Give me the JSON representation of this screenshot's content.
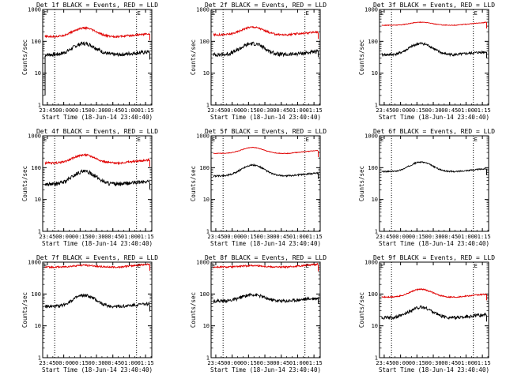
{
  "colors": {
    "events": "#000000",
    "lld": "#e00000",
    "axis": "#000000",
    "background": "#ffffff"
  },
  "shared": {
    "ylabel": "Counts/sec",
    "xlabel": "Start Time (18-Jun-14 23:40:40)",
    "x_ticks": [
      "23:45",
      "00:00",
      "00:15",
      "00:30",
      "00:45",
      "01:00",
      "01:15"
    ],
    "y_ticks": [
      "1",
      "10",
      "100",
      "1000"
    ],
    "marker_start": "E",
    "marker_end": "E"
  },
  "chart_data": [
    {
      "type": "line",
      "title": "Det 1f BLACK = Events, RED = LLD",
      "yscale": "log",
      "ylim": [
        1,
        1000
      ],
      "xlim_minutes": [
        0,
        100
      ],
      "series": [
        {
          "name": "Events",
          "color": "#000000",
          "base": 38,
          "peak": 85,
          "noise": 0.12,
          "has_start_spike": true
        },
        {
          "name": "LLD",
          "color": "#e00000",
          "base": 140,
          "peak": 260,
          "noise": 0.06
        }
      ]
    },
    {
      "type": "line",
      "title": "Det 2f BLACK = Events, RED = LLD",
      "yscale": "log",
      "ylim": [
        1,
        1000
      ],
      "xlim_minutes": [
        0,
        100
      ],
      "series": [
        {
          "name": "Events",
          "color": "#000000",
          "base": 38,
          "peak": 85,
          "noise": 0.12
        },
        {
          "name": "LLD",
          "color": "#e00000",
          "base": 160,
          "peak": 280,
          "noise": 0.06
        }
      ]
    },
    {
      "type": "line",
      "title": "Det 3f BLACK = Events, RED = LLD",
      "yscale": "log",
      "ylim": [
        1,
        1000
      ],
      "xlim_minutes": [
        0,
        100
      ],
      "series": [
        {
          "name": "Events",
          "color": "#000000",
          "base": 38,
          "peak": 85,
          "noise": 0.08
        },
        {
          "name": "LLD",
          "color": "#e00000",
          "base": 320,
          "peak": 400,
          "noise": 0.02
        }
      ]
    },
    {
      "type": "line",
      "title": "Det 4f BLACK = Events, RED = LLD",
      "yscale": "log",
      "ylim": [
        1,
        1000
      ],
      "xlim_minutes": [
        0,
        100
      ],
      "series": [
        {
          "name": "Events",
          "color": "#000000",
          "base": 30,
          "peak": 75,
          "noise": 0.12
        },
        {
          "name": "LLD",
          "color": "#e00000",
          "base": 140,
          "peak": 250,
          "noise": 0.06
        }
      ]
    },
    {
      "type": "line",
      "title": "Det 5f BLACK = Events, RED = LLD",
      "yscale": "log",
      "ylim": [
        1,
        1000
      ],
      "xlim_minutes": [
        0,
        100
      ],
      "series": [
        {
          "name": "Events",
          "color": "#000000",
          "base": 55,
          "peak": 120,
          "noise": 0.05
        },
        {
          "name": "LLD",
          "color": "#e00000",
          "base": 280,
          "peak": 430,
          "noise": 0.02
        }
      ]
    },
    {
      "type": "line",
      "title": "Det 6f BLACK = Events, RED = LLD",
      "yscale": "log",
      "ylim": [
        1,
        1000
      ],
      "xlim_minutes": [
        0,
        100
      ],
      "series": [
        {
          "name": "Events",
          "color": "#000000",
          "base": 75,
          "peak": 150,
          "noise": 0.04
        }
      ]
    },
    {
      "type": "line",
      "title": "Det 7f BLACK = Events, RED = LLD",
      "yscale": "log",
      "ylim": [
        1,
        1000
      ],
      "xlim_minutes": [
        0,
        100
      ],
      "series": [
        {
          "name": "Events",
          "color": "#000000",
          "base": 40,
          "peak": 90,
          "noise": 0.1
        },
        {
          "name": "LLD",
          "color": "#e00000",
          "base": 700,
          "peak": 800,
          "noise": 0.05
        }
      ]
    },
    {
      "type": "line",
      "title": "Det 8f BLACK = Events, RED = LLD",
      "yscale": "log",
      "ylim": [
        1,
        1000
      ],
      "xlim_minutes": [
        0,
        100
      ],
      "series": [
        {
          "name": "Events",
          "color": "#000000",
          "base": 60,
          "peak": 95,
          "noise": 0.1
        },
        {
          "name": "LLD",
          "color": "#e00000",
          "base": 700,
          "peak": 780,
          "noise": 0.05
        }
      ]
    },
    {
      "type": "line",
      "title": "Det 9f BLACK = Events, RED = LLD",
      "yscale": "log",
      "ylim": [
        1,
        1000
      ],
      "xlim_minutes": [
        0,
        100
      ],
      "series": [
        {
          "name": "Events",
          "color": "#000000",
          "base": 18,
          "peak": 38,
          "noise": 0.1
        },
        {
          "name": "LLD",
          "color": "#e00000",
          "base": 80,
          "peak": 140,
          "noise": 0.04
        }
      ]
    }
  ]
}
